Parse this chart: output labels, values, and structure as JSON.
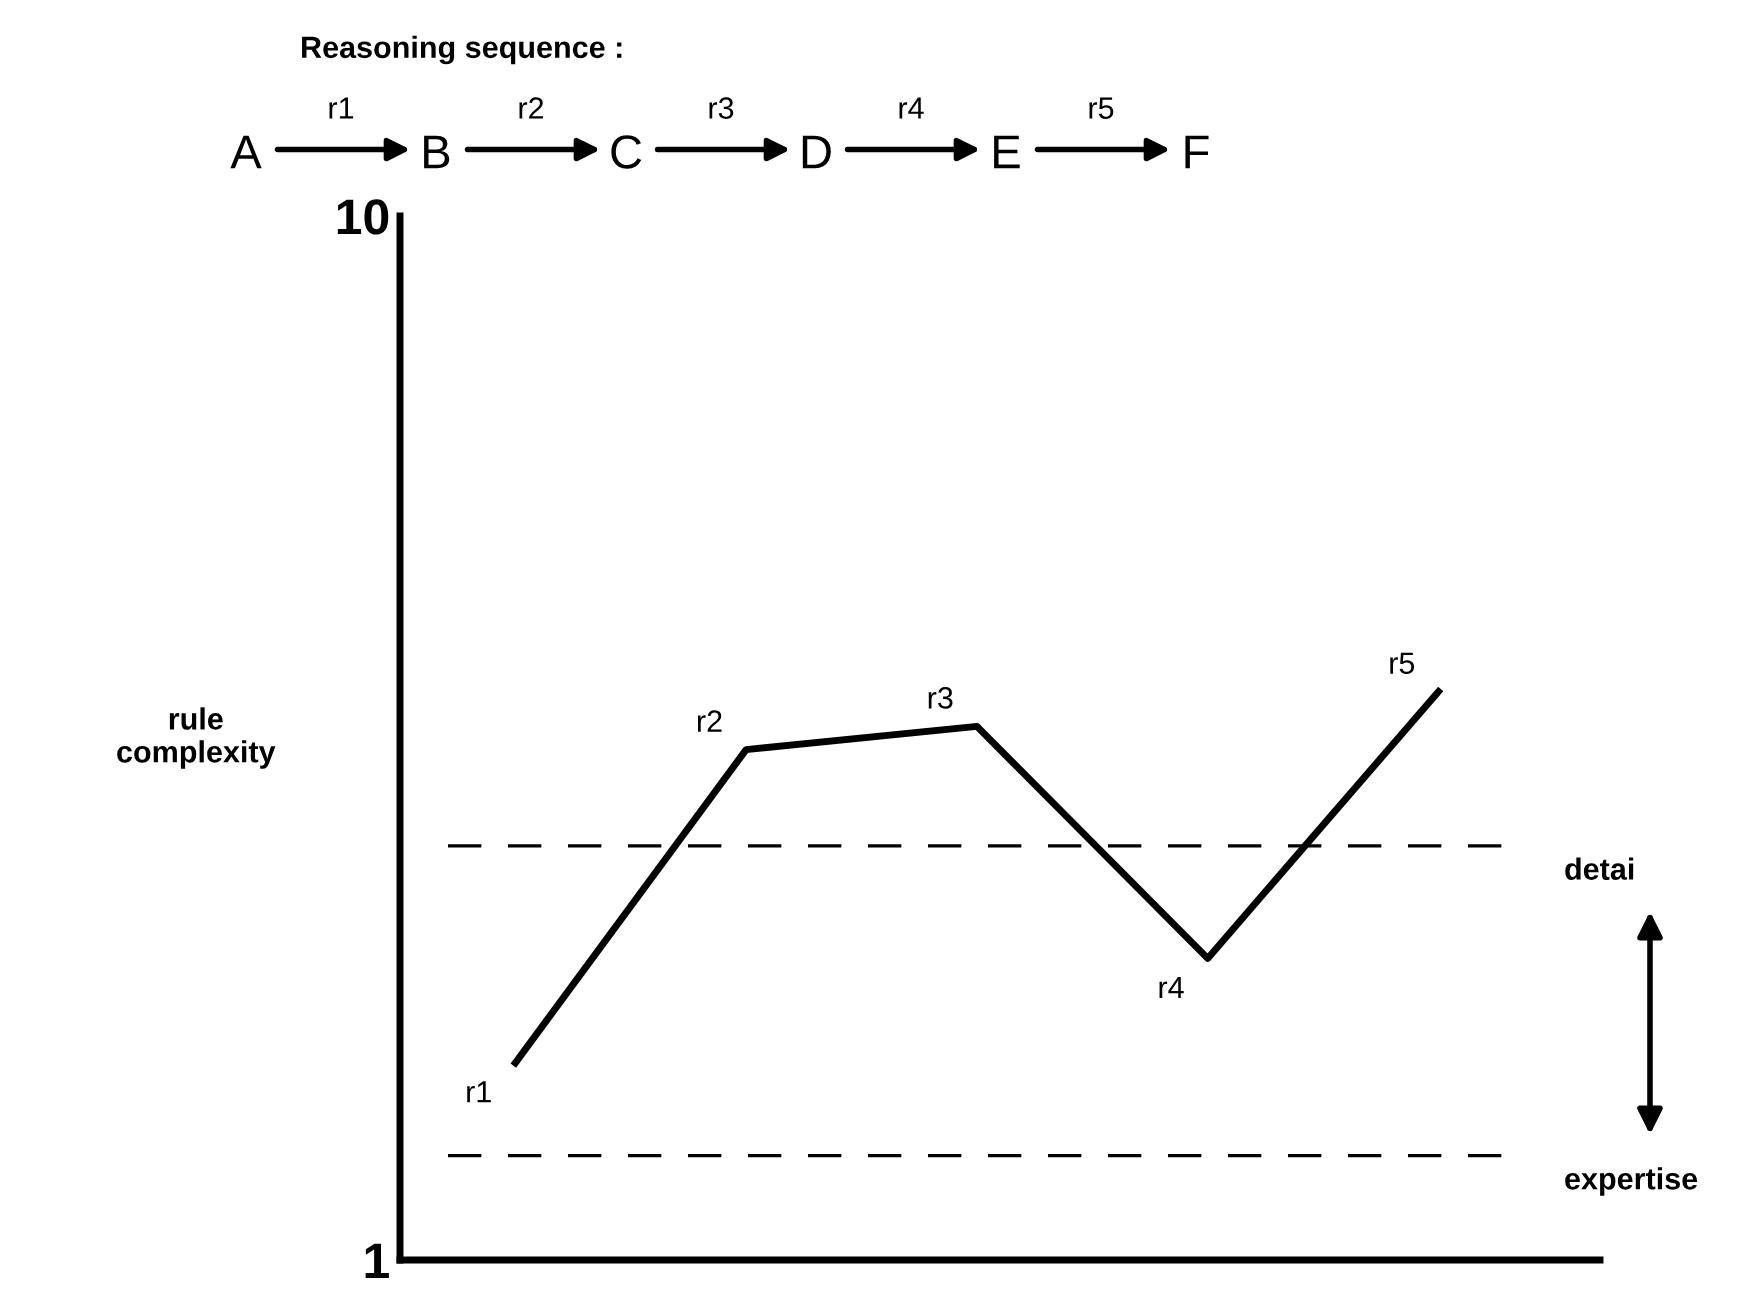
{
  "chart_data": {
    "type": "line",
    "title": "Reasoning sequence :",
    "ylabel": "rule\ncomplexity",
    "annotations": [
      "A",
      "r1",
      "B",
      "r2",
      "C",
      "r3",
      "D",
      "r4",
      "E",
      "r5",
      "F"
    ],
    "categories": [
      null,
      null,
      null,
      null,
      null
    ],
    "values": [
      2.7,
      5.4,
      5.6,
      3.6,
      5.9
    ],
    "value_labels": [
      "r1",
      "r2",
      "r3",
      "r4",
      "r5"
    ],
    "color": "#000000",
    "marker": "none",
    "line_style": "solid",
    "ylim": [
      1,
      10
    ],
    "yticks": [
      1,
      10
    ],
    "grid": false,
    "ref_lines": [
      {
        "axis": "y",
        "value": 4.57,
        "label": "detai",
        "color": "#000000",
        "line_style": "dashed"
      },
      {
        "axis": "y",
        "value": 1.9,
        "label": "expertise",
        "color": "#000000",
        "line_style": "dashed"
      }
    ]
  }
}
